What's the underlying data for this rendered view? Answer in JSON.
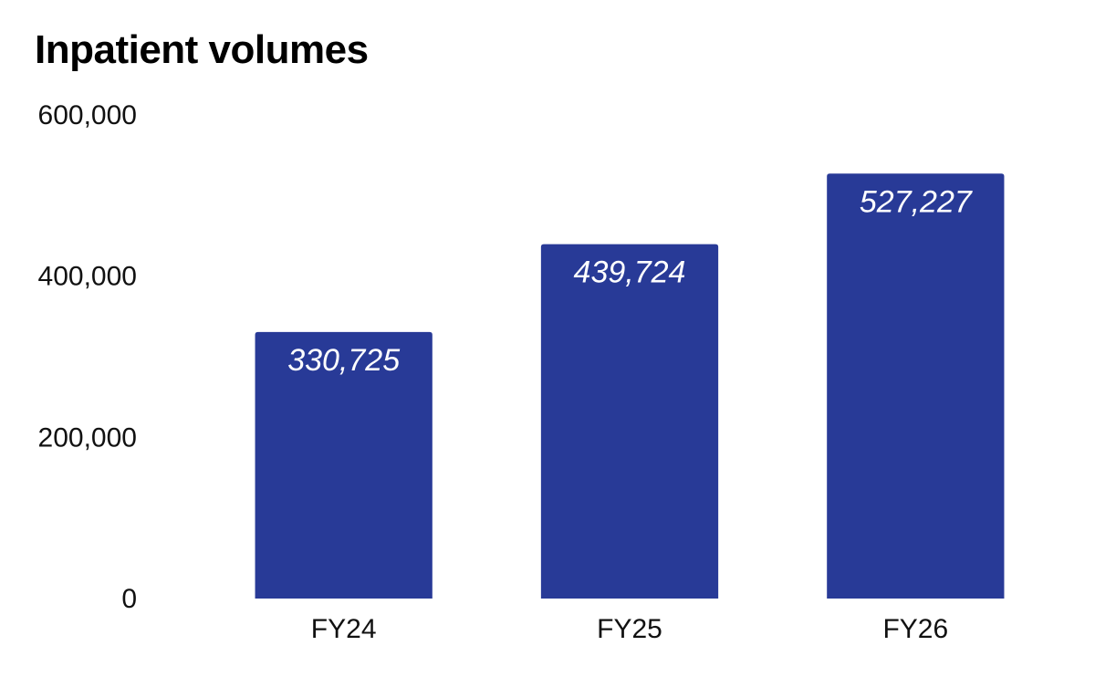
{
  "chart_data": {
    "type": "bar",
    "title": "Inpatient volumes",
    "categories": [
      "FY24",
      "FY25",
      "FY26"
    ],
    "values": [
      330725,
      439724,
      527227
    ],
    "data_labels": [
      "330,725",
      "439,724",
      "527,227"
    ],
    "ylim": [
      0,
      600000
    ],
    "y_ticks": [
      0,
      200000,
      400000,
      600000
    ],
    "y_tick_labels": [
      "0",
      "200,000",
      "400,000",
      "600,000"
    ],
    "grid": false,
    "legend": false,
    "colors": {
      "bar": "#283a97",
      "label": "#ffffff"
    }
  }
}
